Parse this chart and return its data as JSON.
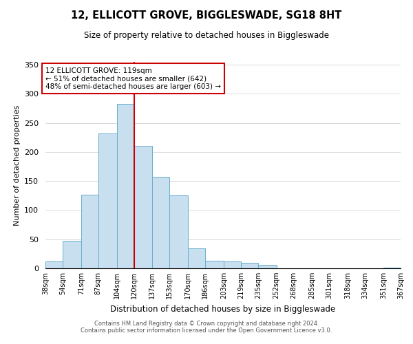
{
  "title": "12, ELLICOTT GROVE, BIGGLESWADE, SG18 8HT",
  "subtitle": "Size of property relative to detached houses in Biggleswade",
  "xlabel": "Distribution of detached houses by size in Biggleswade",
  "ylabel": "Number of detached properties",
  "bar_edges": [
    38,
    54,
    71,
    87,
    104,
    120,
    137,
    153,
    170,
    186,
    203,
    219,
    235,
    252,
    268,
    285,
    301,
    318,
    334,
    351,
    367
  ],
  "bar_heights": [
    12,
    47,
    127,
    232,
    283,
    211,
    157,
    126,
    34,
    13,
    12,
    10,
    6,
    0,
    0,
    0,
    0,
    0,
    0,
    1
  ],
  "bar_color": "#c8dff0",
  "bar_edge_color": "#6aaecc",
  "vline_x": 120,
  "vline_color": "#cc0000",
  "ylim": [
    0,
    355
  ],
  "annotation_text": "12 ELLICOTT GROVE: 119sqm\n← 51% of detached houses are smaller (642)\n48% of semi-detached houses are larger (603) →",
  "annotation_box_color": "#ffffff",
  "annotation_box_edgecolor": "#cc0000",
  "footer1": "Contains HM Land Registry data © Crown copyright and database right 2024.",
  "footer2": "Contains public sector information licensed under the Open Government Licence v3.0.",
  "tick_labels": [
    "38sqm",
    "54sqm",
    "71sqm",
    "87sqm",
    "104sqm",
    "120sqm",
    "137sqm",
    "153sqm",
    "170sqm",
    "186sqm",
    "203sqm",
    "219sqm",
    "235sqm",
    "252sqm",
    "268sqm",
    "285sqm",
    "301sqm",
    "318sqm",
    "334sqm",
    "351sqm",
    "367sqm"
  ]
}
